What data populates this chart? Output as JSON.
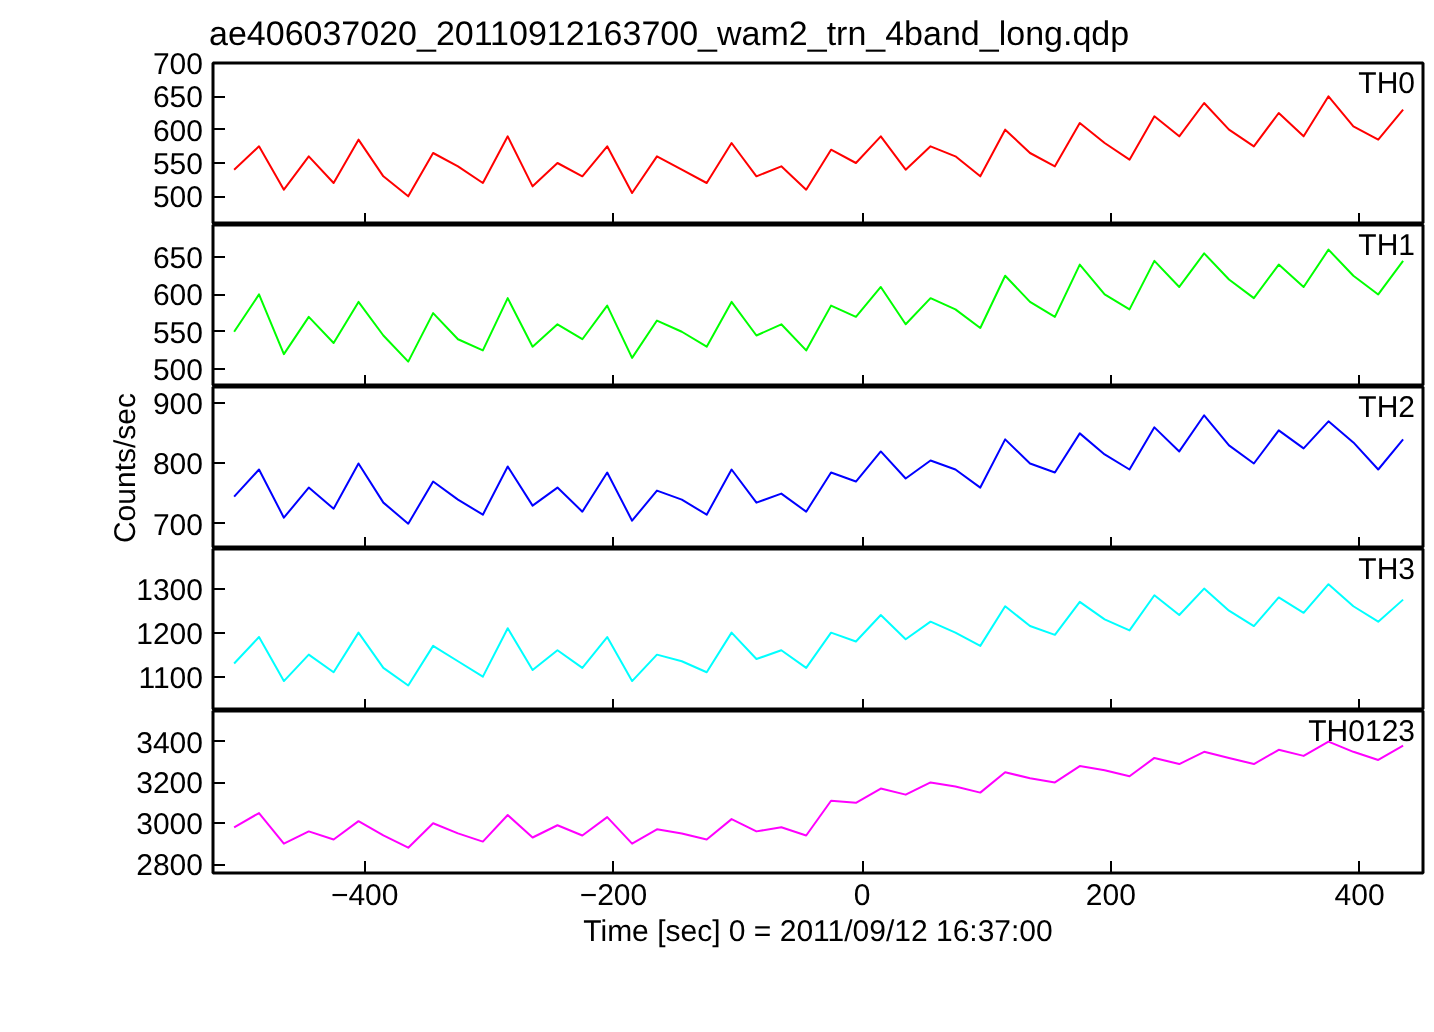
{
  "chart_data": [
    {
      "type": "line",
      "title": "ae406037020_20110912163700_wam2_trn_4band_long.qdp",
      "x": [
        -505,
        -485,
        -465,
        -445,
        -425,
        -405,
        -385,
        -365,
        -345,
        -325,
        -305,
        -285,
        -265,
        -245,
        -225,
        -205,
        -185,
        -165,
        -145,
        -125,
        -105,
        -85,
        -65,
        -45,
        -25,
        -5,
        15,
        35,
        55,
        75,
        95,
        115,
        135,
        155,
        175,
        195,
        215,
        235,
        255,
        275,
        295,
        315,
        335,
        355,
        375,
        395,
        415,
        435
      ],
      "xlim": [
        -522,
        451
      ],
      "xticks": [
        -400,
        -200,
        0,
        200,
        400
      ],
      "ylim": [
        457,
        700
      ],
      "yticks": [
        500,
        550,
        600,
        650,
        700
      ],
      "tick_labels": "y",
      "grid": false,
      "series": [
        {
          "name": "TH0",
          "color": "#ff0000",
          "values": [
            540,
            575,
            510,
            560,
            520,
            585,
            530,
            500,
            565,
            545,
            520,
            590,
            515,
            550,
            530,
            575,
            505,
            560,
            540,
            520,
            580,
            530,
            545,
            510,
            570,
            550,
            590,
            540,
            575,
            560,
            530,
            600,
            565,
            545,
            610,
            580,
            555,
            620,
            590,
            640,
            600,
            575,
            625,
            590,
            650,
            605,
            585,
            630
          ]
        }
      ]
    },
    {
      "type": "line",
      "x": [
        -505,
        -485,
        -465,
        -445,
        -425,
        -405,
        -385,
        -365,
        -345,
        -325,
        -305,
        -285,
        -265,
        -245,
        -225,
        -205,
        -185,
        -165,
        -145,
        -125,
        -105,
        -85,
        -65,
        -45,
        -25,
        -5,
        15,
        35,
        55,
        75,
        95,
        115,
        135,
        155,
        175,
        195,
        215,
        235,
        255,
        275,
        295,
        315,
        335,
        355,
        375,
        395,
        415,
        435
      ],
      "xlim": [
        -522,
        451
      ],
      "xticks": [
        -400,
        -200,
        0,
        200,
        400
      ],
      "ylim": [
        476,
        693
      ],
      "yticks": [
        500,
        550,
        600,
        650
      ],
      "tick_labels": "y",
      "grid": false,
      "series": [
        {
          "name": "TH1",
          "color": "#00ff00",
          "values": [
            550,
            600,
            520,
            570,
            535,
            590,
            545,
            510,
            575,
            540,
            525,
            595,
            530,
            560,
            540,
            585,
            515,
            565,
            550,
            530,
            590,
            545,
            560,
            525,
            585,
            570,
            610,
            560,
            595,
            580,
            555,
            625,
            590,
            570,
            640,
            600,
            580,
            645,
            610,
            655,
            620,
            595,
            640,
            610,
            660,
            625,
            600,
            645
          ]
        }
      ]
    },
    {
      "type": "line",
      "ylabel": "Counts/sec",
      "x": [
        -505,
        -485,
        -465,
        -445,
        -425,
        -405,
        -385,
        -365,
        -345,
        -325,
        -305,
        -285,
        -265,
        -245,
        -225,
        -205,
        -185,
        -165,
        -145,
        -125,
        -105,
        -85,
        -65,
        -45,
        -25,
        -5,
        15,
        35,
        55,
        75,
        95,
        115,
        135,
        155,
        175,
        195,
        215,
        235,
        255,
        275,
        295,
        315,
        335,
        355,
        375,
        395,
        415,
        435
      ],
      "xlim": [
        -522,
        451
      ],
      "xticks": [
        -400,
        -200,
        0,
        200,
        400
      ],
      "ylim": [
        658,
        927
      ],
      "yticks": [
        700,
        800,
        900
      ],
      "tick_labels": "y",
      "grid": false,
      "series": [
        {
          "name": "TH2",
          "color": "#0000ff",
          "values": [
            745,
            790,
            710,
            760,
            725,
            800,
            735,
            700,
            770,
            740,
            715,
            795,
            730,
            760,
            720,
            785,
            705,
            755,
            740,
            715,
            790,
            735,
            750,
            720,
            785,
            770,
            820,
            775,
            805,
            790,
            760,
            840,
            800,
            785,
            850,
            815,
            790,
            860,
            820,
            880,
            830,
            800,
            855,
            825,
            870,
            835,
            790,
            840
          ]
        }
      ]
    },
    {
      "type": "line",
      "x": [
        -505,
        -485,
        -465,
        -445,
        -425,
        -405,
        -385,
        -365,
        -345,
        -325,
        -305,
        -285,
        -265,
        -245,
        -225,
        -205,
        -185,
        -165,
        -145,
        -125,
        -105,
        -85,
        -65,
        -45,
        -25,
        -5,
        15,
        35,
        55,
        75,
        95,
        115,
        135,
        155,
        175,
        195,
        215,
        235,
        255,
        275,
        295,
        315,
        335,
        355,
        375,
        395,
        415,
        435
      ],
      "xlim": [
        -522,
        451
      ],
      "xticks": [
        -400,
        -200,
        0,
        200,
        400
      ],
      "ylim": [
        1022,
        1390
      ],
      "yticks": [
        1100,
        1200,
        1300
      ],
      "tick_labels": "y",
      "grid": false,
      "series": [
        {
          "name": "TH3",
          "color": "#00ffff",
          "values": [
            1130,
            1190,
            1090,
            1150,
            1110,
            1200,
            1120,
            1080,
            1170,
            1135,
            1100,
            1210,
            1115,
            1160,
            1120,
            1190,
            1090,
            1150,
            1135,
            1110,
            1200,
            1140,
            1160,
            1120,
            1200,
            1180,
            1240,
            1185,
            1225,
            1200,
            1170,
            1260,
            1215,
            1195,
            1270,
            1230,
            1205,
            1285,
            1240,
            1300,
            1250,
            1215,
            1280,
            1245,
            1310,
            1260,
            1225,
            1275
          ]
        }
      ]
    },
    {
      "type": "line",
      "xlabel": "Time [sec] 0 = 2011/09/12 16:37:00",
      "x": [
        -505,
        -485,
        -465,
        -445,
        -425,
        -405,
        -385,
        -365,
        -345,
        -325,
        -305,
        -285,
        -265,
        -245,
        -225,
        -205,
        -185,
        -165,
        -145,
        -125,
        -105,
        -85,
        -65,
        -45,
        -25,
        -5,
        15,
        35,
        55,
        75,
        95,
        115,
        135,
        155,
        175,
        195,
        215,
        235,
        255,
        275,
        295,
        315,
        335,
        355,
        375,
        395,
        415,
        435
      ],
      "xlim": [
        -522,
        451
      ],
      "xticks": [
        -400,
        -200,
        0,
        200,
        400
      ],
      "ylim": [
        2756,
        3550
      ],
      "yticks": [
        2800,
        3000,
        3200,
        3400
      ],
      "grid": false,
      "series": [
        {
          "name": "TH0123",
          "color": "#ff00ff",
          "values": [
            2980,
            3050,
            2900,
            2960,
            2920,
            3010,
            2940,
            2880,
            3000,
            2950,
            2910,
            3040,
            2930,
            2990,
            2940,
            3030,
            2900,
            2970,
            2950,
            2920,
            3020,
            2960,
            2980,
            2940,
            3110,
            3100,
            3170,
            3140,
            3200,
            3180,
            3150,
            3250,
            3220,
            3200,
            3280,
            3260,
            3230,
            3320,
            3290,
            3350,
            3320,
            3290,
            3360,
            3330,
            3400,
            3350,
            3310,
            3380
          ]
        }
      ]
    }
  ]
}
